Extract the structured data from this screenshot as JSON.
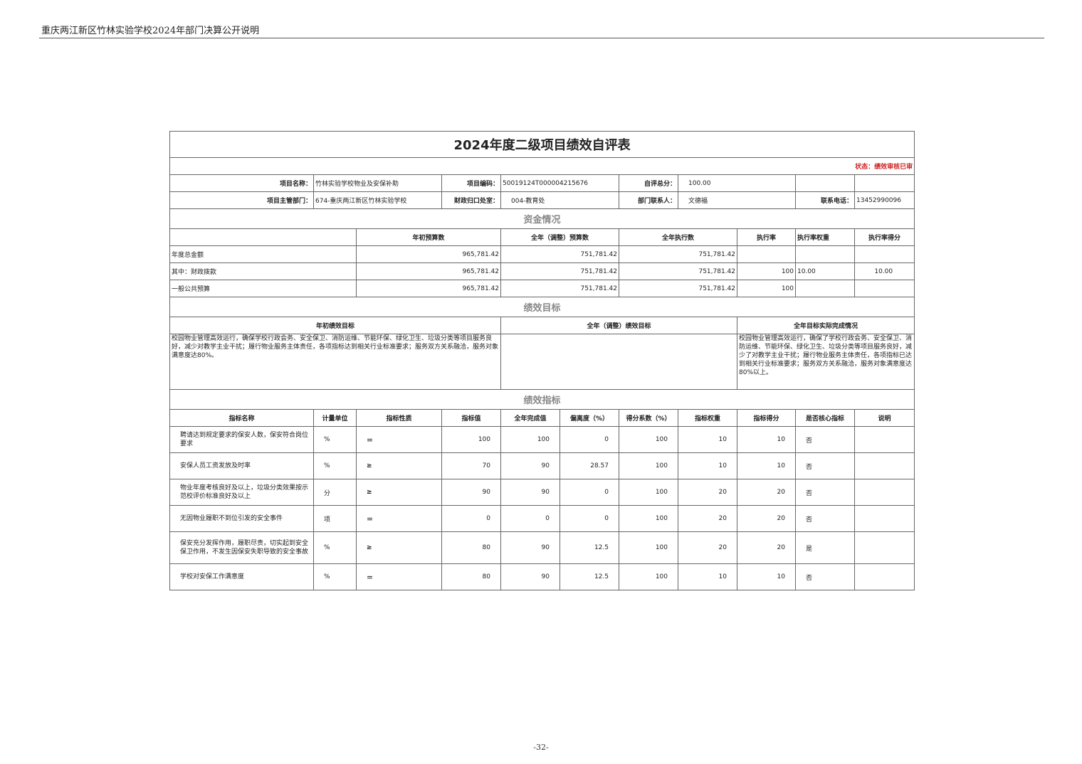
{
  "doc_header": "重庆两江新区竹林实验学校2024年部门决算公开说明",
  "page_number": "-32-",
  "title": "2024年度二级项目绩效自评表",
  "status": "状态：绩效审核已审",
  "info": {
    "project_name_label": "项目名称：",
    "project_name": "竹林实验学校物业及安保补助",
    "project_code_label": "项目编码：",
    "project_code": "50019124T000004215676",
    "score_label": "自评总分：",
    "score": "100.00",
    "dept_label": "项目主管部门：",
    "dept": "674-重庆两江新区竹林实验学校",
    "finance_label": "财政归口处室：",
    "finance": "004-教育处",
    "contact_label": "部门联系人：",
    "contact": "文德福",
    "phone_label": "联系电话：",
    "phone": "13452990096"
  },
  "funds": {
    "section": "资金情况",
    "headers": [
      "",
      "年初预算数",
      "全年（调整）预算数",
      "全年执行数",
      "执行率",
      "执行率权重",
      "执行率得分"
    ],
    "rows": [
      [
        "年度总金额",
        "965,781.42",
        "751,781.42",
        "751,781.42",
        "",
        "",
        ""
      ],
      [
        "其中：财政拨款",
        "965,781.42",
        "751,781.42",
        "751,781.42",
        "100",
        "10.00",
        "10.00"
      ],
      [
        "一般公共预算",
        "965,781.42",
        "751,781.42",
        "751,781.42",
        "100",
        "",
        ""
      ]
    ]
  },
  "goals": {
    "section": "绩效目标",
    "headers": [
      "年初绩效目标",
      "全年（调整）绩效目标",
      "全年目标实际完成情况"
    ],
    "initial": "校园物业管理高效运行，确保学校行政会务、安全保卫、消防运维、节能环保、绿化卫生、垃圾分类等项目服务良好，减少对教学主业干扰；履行物业服务主体责任，各项指标达到相关行业标准要求；服务双方关系融洽，服务对象满意度达80%。",
    "adjusted": "",
    "actual": "校园物业管理高效运行，确保了学校行政会务、安全保卫、消防运维、节能环保、绿化卫生、垃圾分类等项目服务良好，减少了对教学主业干扰；履行物业服务主体责任，各项指标已达到相关行业标准要求；服务双方关系融洽，服务对象满意度达80%以上。"
  },
  "indicators": {
    "section": "绩效指标",
    "headers": [
      "指标名称",
      "计量单位",
      "指标性质",
      "指标值",
      "全年完成值",
      "偏离度（%）",
      "得分系数（%）",
      "指标权重",
      "指标得分",
      "是否核心指标",
      "说明"
    ],
    "rows": [
      [
        "聘请达到规定要求的保安人数，保安符合岗位要求",
        "%",
        "＝",
        "100",
        "100",
        "0",
        "100",
        "10",
        "10",
        "否",
        ""
      ],
      [
        "安保人员工资发放及时率",
        "%",
        "≥",
        "70",
        "90",
        "28.57",
        "100",
        "10",
        "10",
        "否",
        ""
      ],
      [
        "物业年度考核良好及以上，垃圾分类效果按示范校评价标准良好及以上",
        "分",
        "≥",
        "90",
        "90",
        "0",
        "100",
        "20",
        "20",
        "否",
        ""
      ],
      [
        "无因物业履职不到位引发的安全事件",
        "项",
        "＝",
        "0",
        "0",
        "0",
        "100",
        "20",
        "20",
        "否",
        ""
      ],
      [
        "保安充分发挥作用，履职尽责，切实起到安全保卫作用，不发生因保安失职导致的安全事故",
        "%",
        "≥",
        "80",
        "90",
        "12.5",
        "100",
        "20",
        "20",
        "是",
        ""
      ],
      [
        "学校对安保工作满意度",
        "%",
        "＝",
        "80",
        "90",
        "12.5",
        "100",
        "10",
        "10",
        "否",
        ""
      ]
    ]
  }
}
